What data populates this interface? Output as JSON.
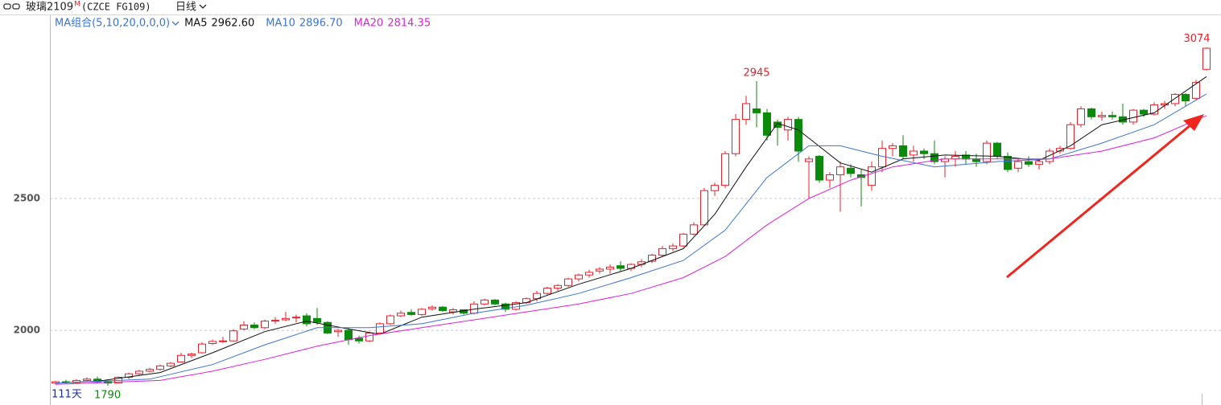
{
  "title": "玻璃2109",
  "contract_flag": "M",
  "code": "(CZCE FG109)",
  "period": "日线",
  "chart_data": {
    "type": "candlestick",
    "indicator": "MA组合(5,10,20,0,0,0)",
    "days_label": "111天",
    "ylim": [
      1729,
      3192
    ],
    "yticks": [
      2000,
      2500
    ],
    "grid": true,
    "up_color": "#e8202a",
    "down_color": "#0b8a0b",
    "open": [
      1800,
      1805,
      1802,
      1810,
      1815,
      1805,
      1800,
      1822,
      1835,
      1845,
      1852,
      1865,
      1880,
      1905,
      1915,
      1950,
      1958,
      1960,
      2005,
      2020,
      2010,
      2035,
      2040,
      2048,
      2055,
      2045,
      2030,
      1995,
      2000,
      1970,
      1960,
      1990,
      2025,
      2055,
      2068,
      2060,
      2082,
      2088,
      2070,
      2078,
      2065,
      2100,
      2115,
      2100,
      2080,
      2105,
      2120,
      2140,
      2160,
      2170,
      2195,
      2210,
      2225,
      2232,
      2245,
      2235,
      2250,
      2262,
      2285,
      2310,
      2320,
      2365,
      2400,
      2530,
      2550,
      2670,
      2800,
      2840,
      2825,
      2790,
      2760,
      2800,
      2640,
      2660,
      2570,
      2590,
      2615,
      2590,
      2550,
      2620,
      2690,
      2700,
      2665,
      2680,
      2670,
      2640,
      2650,
      2665,
      2650,
      2640,
      2710,
      2660,
      2615,
      2640,
      2630,
      2640,
      2680,
      2690,
      2780,
      2840,
      2810,
      2815,
      2810,
      2790,
      2835,
      2820,
      2855,
      2860,
      2895,
      2880,
      2990
    ],
    "high": [
      1808,
      1812,
      1815,
      1822,
      1825,
      1810,
      1825,
      1840,
      1850,
      1858,
      1870,
      1880,
      1915,
      1915,
      1955,
      1965,
      1975,
      2005,
      2035,
      2030,
      2040,
      2050,
      2070,
      2060,
      2065,
      2085,
      2035,
      2005,
      2010,
      1980,
      1995,
      2030,
      2060,
      2075,
      2080,
      2085,
      2095,
      2092,
      2085,
      2080,
      2110,
      2120,
      2118,
      2105,
      2110,
      2125,
      2150,
      2165,
      2175,
      2200,
      2215,
      2230,
      2240,
      2250,
      2262,
      2255,
      2270,
      2290,
      2320,
      2330,
      2370,
      2410,
      2540,
      2560,
      2680,
      2820,
      2890,
      2945,
      2840,
      2800,
      2810,
      2810,
      2660,
      2665,
      2600,
      2640,
      2630,
      2610,
      2640,
      2720,
      2710,
      2740,
      2700,
      2690,
      2720,
      2660,
      2680,
      2680,
      2670,
      2720,
      2715,
      2675,
      2650,
      2660,
      2645,
      2690,
      2700,
      2790,
      2850,
      2845,
      2830,
      2830,
      2860,
      2840,
      2840,
      2865,
      2870,
      2900,
      2900,
      2950,
      3074
    ],
    "low": [
      1795,
      1798,
      1800,
      1805,
      1798,
      1790,
      1798,
      1815,
      1830,
      1840,
      1848,
      1860,
      1878,
      1895,
      1912,
      1945,
      1952,
      1958,
      2000,
      2005,
      2005,
      2025,
      2035,
      2030,
      2015,
      2020,
      1985,
      1975,
      1945,
      1950,
      1955,
      1985,
      2020,
      2050,
      2055,
      2055,
      2075,
      2070,
      2060,
      2060,
      2060,
      2095,
      2095,
      2070,
      2075,
      2100,
      2110,
      2135,
      2150,
      2165,
      2185,
      2200,
      2215,
      2215,
      2225,
      2225,
      2240,
      2255,
      2280,
      2300,
      2315,
      2360,
      2395,
      2510,
      2540,
      2660,
      2780,
      2770,
      2720,
      2700,
      2720,
      2640,
      2500,
      2560,
      2540,
      2450,
      2580,
      2470,
      2530,
      2600,
      2660,
      2650,
      2640,
      2650,
      2630,
      2580,
      2620,
      2630,
      2620,
      2630,
      2650,
      2600,
      2600,
      2620,
      2610,
      2630,
      2670,
      2685,
      2770,
      2800,
      2795,
      2800,
      2780,
      2780,
      2810,
      2815,
      2840,
      2850,
      2850,
      2875,
      2985
    ],
    "close": [
      1805,
      1802,
      1810,
      1815,
      1805,
      1800,
      1822,
      1835,
      1845,
      1852,
      1865,
      1875,
      1905,
      1910,
      1948,
      1958,
      1960,
      1998,
      2020,
      2010,
      2035,
      2038,
      2045,
      2050,
      2025,
      2030,
      1990,
      2000,
      1965,
      1960,
      1990,
      2025,
      2055,
      2065,
      2060,
      2080,
      2088,
      2075,
      2078,
      2065,
      2100,
      2115,
      2100,
      2080,
      2105,
      2120,
      2140,
      2160,
      2170,
      2195,
      2210,
      2220,
      2232,
      2240,
      2235,
      2250,
      2260,
      2285,
      2310,
      2320,
      2365,
      2400,
      2530,
      2550,
      2670,
      2800,
      2860,
      2825,
      2740,
      2770,
      2800,
      2680,
      2650,
      2570,
      2590,
      2620,
      2595,
      2580,
      2620,
      2690,
      2700,
      2660,
      2680,
      2670,
      2640,
      2650,
      2660,
      2650,
      2640,
      2710,
      2660,
      2610,
      2640,
      2630,
      2640,
      2680,
      2690,
      2780,
      2840,
      2810,
      2815,
      2810,
      2790,
      2835,
      2820,
      2855,
      2860,
      2895,
      2870,
      2940,
      3070
    ],
    "series": [
      {
        "name": "MA5",
        "label": "2962.60",
        "color": "#111111",
        "x": [
          0,
          4,
          10,
          15,
          20,
          24,
          28,
          31,
          35,
          40,
          45,
          50,
          55,
          60,
          63,
          66,
          69,
          71,
          75,
          78,
          81,
          85,
          90,
          94,
          97,
          100,
          105,
          110
        ],
        "values": [
          1800,
          1807,
          1840,
          1915,
          1995,
          2035,
          2005,
          1985,
          2050,
          2080,
          2105,
          2175,
          2235,
          2310,
          2440,
          2620,
          2785,
          2760,
          2635,
          2600,
          2650,
          2665,
          2660,
          2645,
          2700,
          2780,
          2825,
          2962.6
        ]
      },
      {
        "name": "MA10",
        "label": "2896.70",
        "color": "#3a74d8",
        "x": [
          0,
          9,
          15,
          20,
          25,
          30,
          35,
          40,
          45,
          50,
          55,
          60,
          64,
          68,
          72,
          75,
          79,
          84,
          90,
          95,
          100,
          105,
          110
        ],
        "values": [
          1800,
          1815,
          1870,
          1945,
          2010,
          2010,
          2025,
          2065,
          2095,
          2140,
          2200,
          2265,
          2380,
          2580,
          2700,
          2700,
          2660,
          2620,
          2640,
          2650,
          2710,
          2780,
          2896.7
        ]
      },
      {
        "name": "MA20",
        "label": "2814.35",
        "color": "#e020d8",
        "x": [
          0,
          10,
          15,
          20,
          25,
          30,
          35,
          40,
          45,
          50,
          55,
          60,
          64,
          68,
          72,
          76,
          80,
          85,
          90,
          95,
          100,
          105,
          110
        ],
        "values": [
          1795,
          1810,
          1845,
          1890,
          1940,
          1980,
          2010,
          2040,
          2070,
          2100,
          2140,
          2200,
          2280,
          2400,
          2500,
          2570,
          2620,
          2650,
          2650,
          2650,
          2680,
          2730,
          2814.35
        ]
      }
    ]
  }
}
